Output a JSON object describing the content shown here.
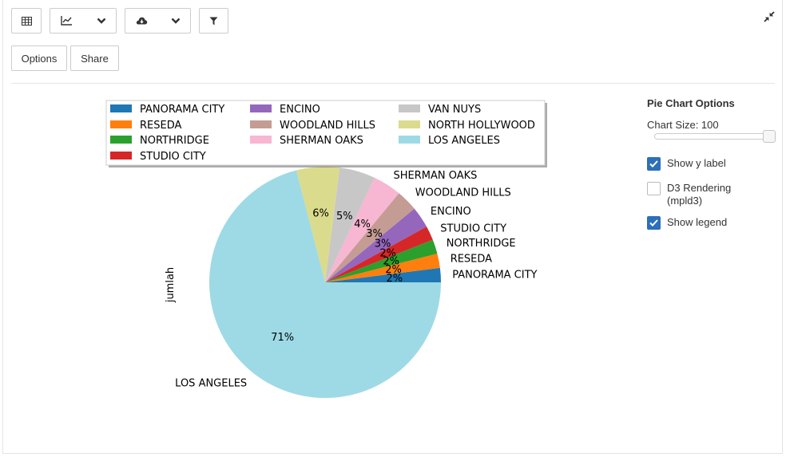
{
  "toolbar": {
    "table_icon": "table-icon",
    "chart_icon": "line-chart-icon",
    "download_icon": "cloud-download-icon",
    "filter_icon": "filter-icon",
    "collapse_icon": "compress-icon"
  },
  "buttons": {
    "options": "Options",
    "share": "Share"
  },
  "options_panel": {
    "title": "Pie Chart Options",
    "chart_size_label": "Chart Size: 100",
    "chart_size_value": 100,
    "show_y_label": {
      "label": "Show y label",
      "checked": true
    },
    "d3_rendering": {
      "label": "D3 Rendering\n(mpld3)",
      "line1": "D3 Rendering",
      "line2": "(mpld3)",
      "checked": false
    },
    "show_legend": {
      "label": "Show legend",
      "checked": true
    }
  },
  "chart_data": {
    "type": "pie",
    "ylabel": "jumlah",
    "legend_position": "top",
    "slices": [
      {
        "label": "PANORAMA CITY",
        "percent": 2,
        "pct_label": "2%",
        "color": "#1f77b4"
      },
      {
        "label": "RESEDA",
        "percent": 2,
        "pct_label": "2%",
        "color": "#ff7f0e"
      },
      {
        "label": "NORTHRIDGE",
        "percent": 2,
        "pct_label": "2%",
        "color": "#2ca02c"
      },
      {
        "label": "STUDIO CITY",
        "percent": 2,
        "pct_label": "2%",
        "color": "#d62728"
      },
      {
        "label": "ENCINO",
        "percent": 3,
        "pct_label": "3%",
        "color": "#9467bd"
      },
      {
        "label": "WOODLAND HILLS",
        "percent": 3,
        "pct_label": "3%",
        "color": "#c49c94"
      },
      {
        "label": "SHERMAN OAKS",
        "percent": 4,
        "pct_label": "4%",
        "color": "#f7b6d2"
      },
      {
        "label": "VAN NUYS",
        "percent": 5,
        "pct_label": "5%",
        "color": "#c7c7c7"
      },
      {
        "label": "NORTH HOLLYWOOD",
        "percent": 6,
        "pct_label": "6%",
        "color": "#dbdb8d"
      },
      {
        "label": "LOS ANGELES",
        "percent": 71,
        "pct_label": "71%",
        "color": "#9edae5"
      }
    ]
  }
}
